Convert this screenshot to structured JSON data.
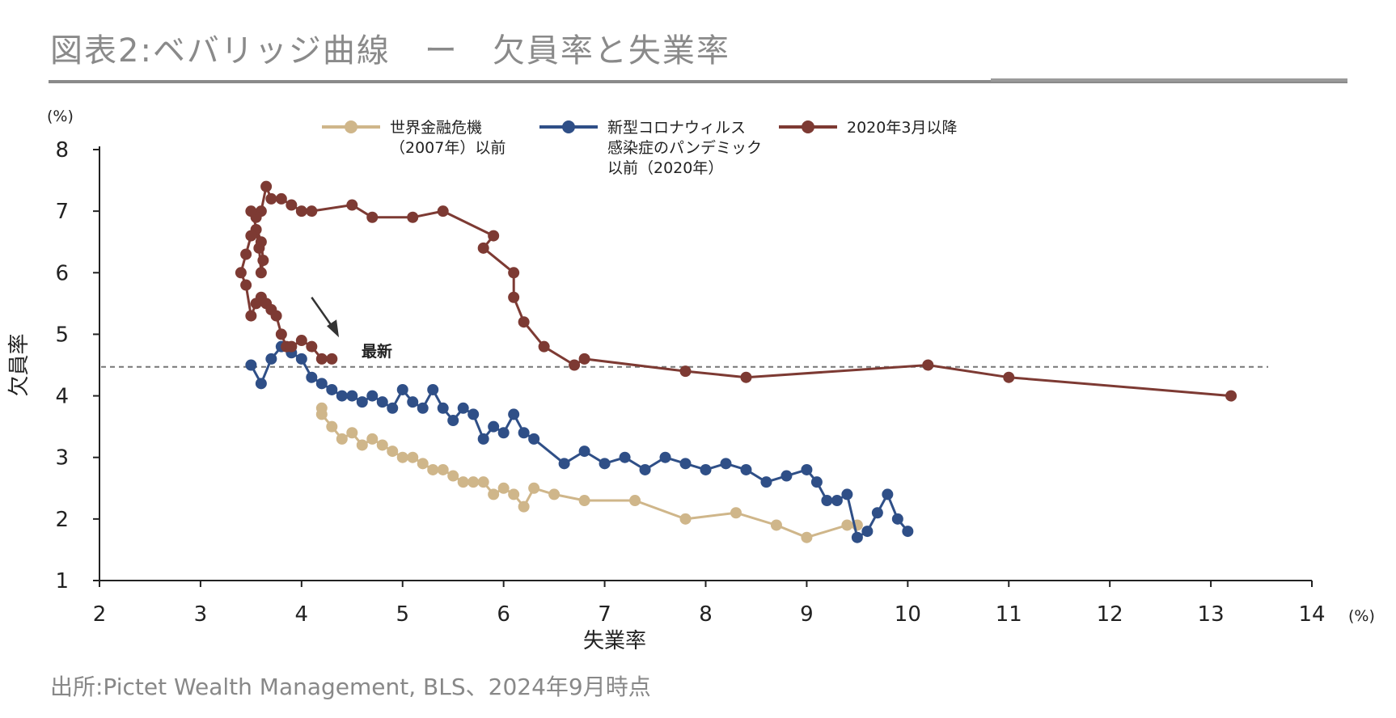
{
  "title": "図表2:ベバリッジ曲線　ー　欠員率と失業率",
  "source": "出所:Pictet Wealth Management, BLS、2024年9月時点",
  "colors": {
    "pre_gfc": "#cfb68a",
    "pre_covid": "#2f4f87",
    "post_2020": "#7d3a33",
    "axis": "#222222",
    "reference_line": "#777777"
  },
  "chart_data": {
    "type": "line",
    "title": "",
    "xlabel": "失業率",
    "ylabel": "欠員率",
    "x_unit": "(%)",
    "y_unit": "(%)",
    "xlim": [
      2,
      14
    ],
    "ylim": [
      1,
      8
    ],
    "xticks": [
      2,
      3,
      4,
      5,
      6,
      7,
      8,
      9,
      10,
      11,
      12,
      13,
      14
    ],
    "yticks": [
      1,
      2,
      3,
      4,
      5,
      6,
      7,
      8
    ],
    "reference_line_y": 4.47,
    "annotation": {
      "text": "最新",
      "arrow_from": [
        4.1,
        5.6
      ],
      "arrow_to": [
        4.37,
        4.95
      ]
    },
    "legend_position": "top",
    "series": [
      {
        "name": "世界金融危機（2007年）以前",
        "color_key": "pre_gfc",
        "x": [
          9.5,
          9.4,
          9.0,
          8.7,
          8.3,
          7.8,
          7.3,
          6.8,
          6.5,
          6.3,
          6.2,
          6.1,
          6.0,
          5.9,
          5.8,
          5.7,
          5.6,
          5.5,
          5.4,
          5.3,
          5.2,
          5.1,
          5.0,
          4.9,
          4.8,
          4.7,
          4.6,
          4.5,
          4.4,
          4.3,
          4.2,
          4.2
        ],
        "y": [
          1.9,
          1.9,
          1.7,
          1.9,
          2.1,
          2.0,
          2.3,
          2.3,
          2.4,
          2.5,
          2.2,
          2.4,
          2.5,
          2.4,
          2.6,
          2.6,
          2.6,
          2.7,
          2.8,
          2.8,
          2.9,
          3.0,
          3.0,
          3.1,
          3.2,
          3.3,
          3.2,
          3.4,
          3.3,
          3.5,
          3.7,
          3.8
        ]
      },
      {
        "name": "新型コロナウィルス感染症のパンデミック以前（2020年）",
        "color_key": "pre_covid",
        "x": [
          10.0,
          9.9,
          9.8,
          9.7,
          9.6,
          9.5,
          9.4,
          9.3,
          9.2,
          9.1,
          9.0,
          8.8,
          8.6,
          8.4,
          8.2,
          8.0,
          7.8,
          7.6,
          7.4,
          7.2,
          7.0,
          6.8,
          6.6,
          6.3,
          6.2,
          6.1,
          6.0,
          5.9,
          5.8,
          5.7,
          5.6,
          5.5,
          5.4,
          5.3,
          5.2,
          5.1,
          5.0,
          4.9,
          4.8,
          4.7,
          4.6,
          4.5,
          4.4,
          4.3,
          4.2,
          4.1,
          4.0,
          3.9,
          3.8,
          3.7,
          3.6,
          3.5
        ],
        "y": [
          1.8,
          2.0,
          2.4,
          2.1,
          1.8,
          1.7,
          2.4,
          2.3,
          2.3,
          2.6,
          2.8,
          2.7,
          2.6,
          2.8,
          2.9,
          2.8,
          2.9,
          3.0,
          2.8,
          3.0,
          2.9,
          3.1,
          2.9,
          3.3,
          3.4,
          3.7,
          3.4,
          3.5,
          3.3,
          3.7,
          3.8,
          3.6,
          3.8,
          4.1,
          3.8,
          3.9,
          4.1,
          3.8,
          3.9,
          4.0,
          3.9,
          4.0,
          4.0,
          4.1,
          4.2,
          4.3,
          4.6,
          4.7,
          4.8,
          4.6,
          4.2,
          4.5
        ]
      },
      {
        "name": "2020年3月以降",
        "color_key": "post_2020",
        "x": [
          13.2,
          11.0,
          10.2,
          8.4,
          7.8,
          6.8,
          6.7,
          6.4,
          6.2,
          6.1,
          6.1,
          5.8,
          5.9,
          5.4,
          5.1,
          4.7,
          4.5,
          4.1,
          4.0,
          3.9,
          3.8,
          3.7,
          3.65,
          3.6,
          3.55,
          3.5,
          3.6,
          3.62,
          3.6,
          3.58,
          3.55,
          3.5,
          3.45,
          3.4,
          3.45,
          3.5,
          3.55,
          3.6,
          3.65,
          3.7,
          3.75,
          3.8,
          3.85,
          3.9,
          4.0,
          4.1,
          4.2,
          4.3
        ],
        "y": [
          4.0,
          4.3,
          4.5,
          4.3,
          4.4,
          4.6,
          4.5,
          4.8,
          5.2,
          5.6,
          6.0,
          6.4,
          6.6,
          7.0,
          6.9,
          6.9,
          7.1,
          7.0,
          7.0,
          7.1,
          7.2,
          7.2,
          7.4,
          7.0,
          6.9,
          7.0,
          6.5,
          6.2,
          6.0,
          6.4,
          6.7,
          6.6,
          6.3,
          6.0,
          5.8,
          5.3,
          5.5,
          5.6,
          5.5,
          5.4,
          5.3,
          5.0,
          4.8,
          4.8,
          4.9,
          4.8,
          4.6,
          4.6
        ]
      }
    ],
    "legend": [
      {
        "lines": [
          "世界金融危機",
          "（2007年）以前"
        ],
        "color_key": "pre_gfc"
      },
      {
        "lines": [
          "新型コロナウィルス",
          "感染症のパンデミック",
          "以前（2020年）"
        ],
        "color_key": "pre_covid"
      },
      {
        "lines": [
          "2020年3月以降"
        ],
        "color_key": "post_2020"
      }
    ]
  }
}
